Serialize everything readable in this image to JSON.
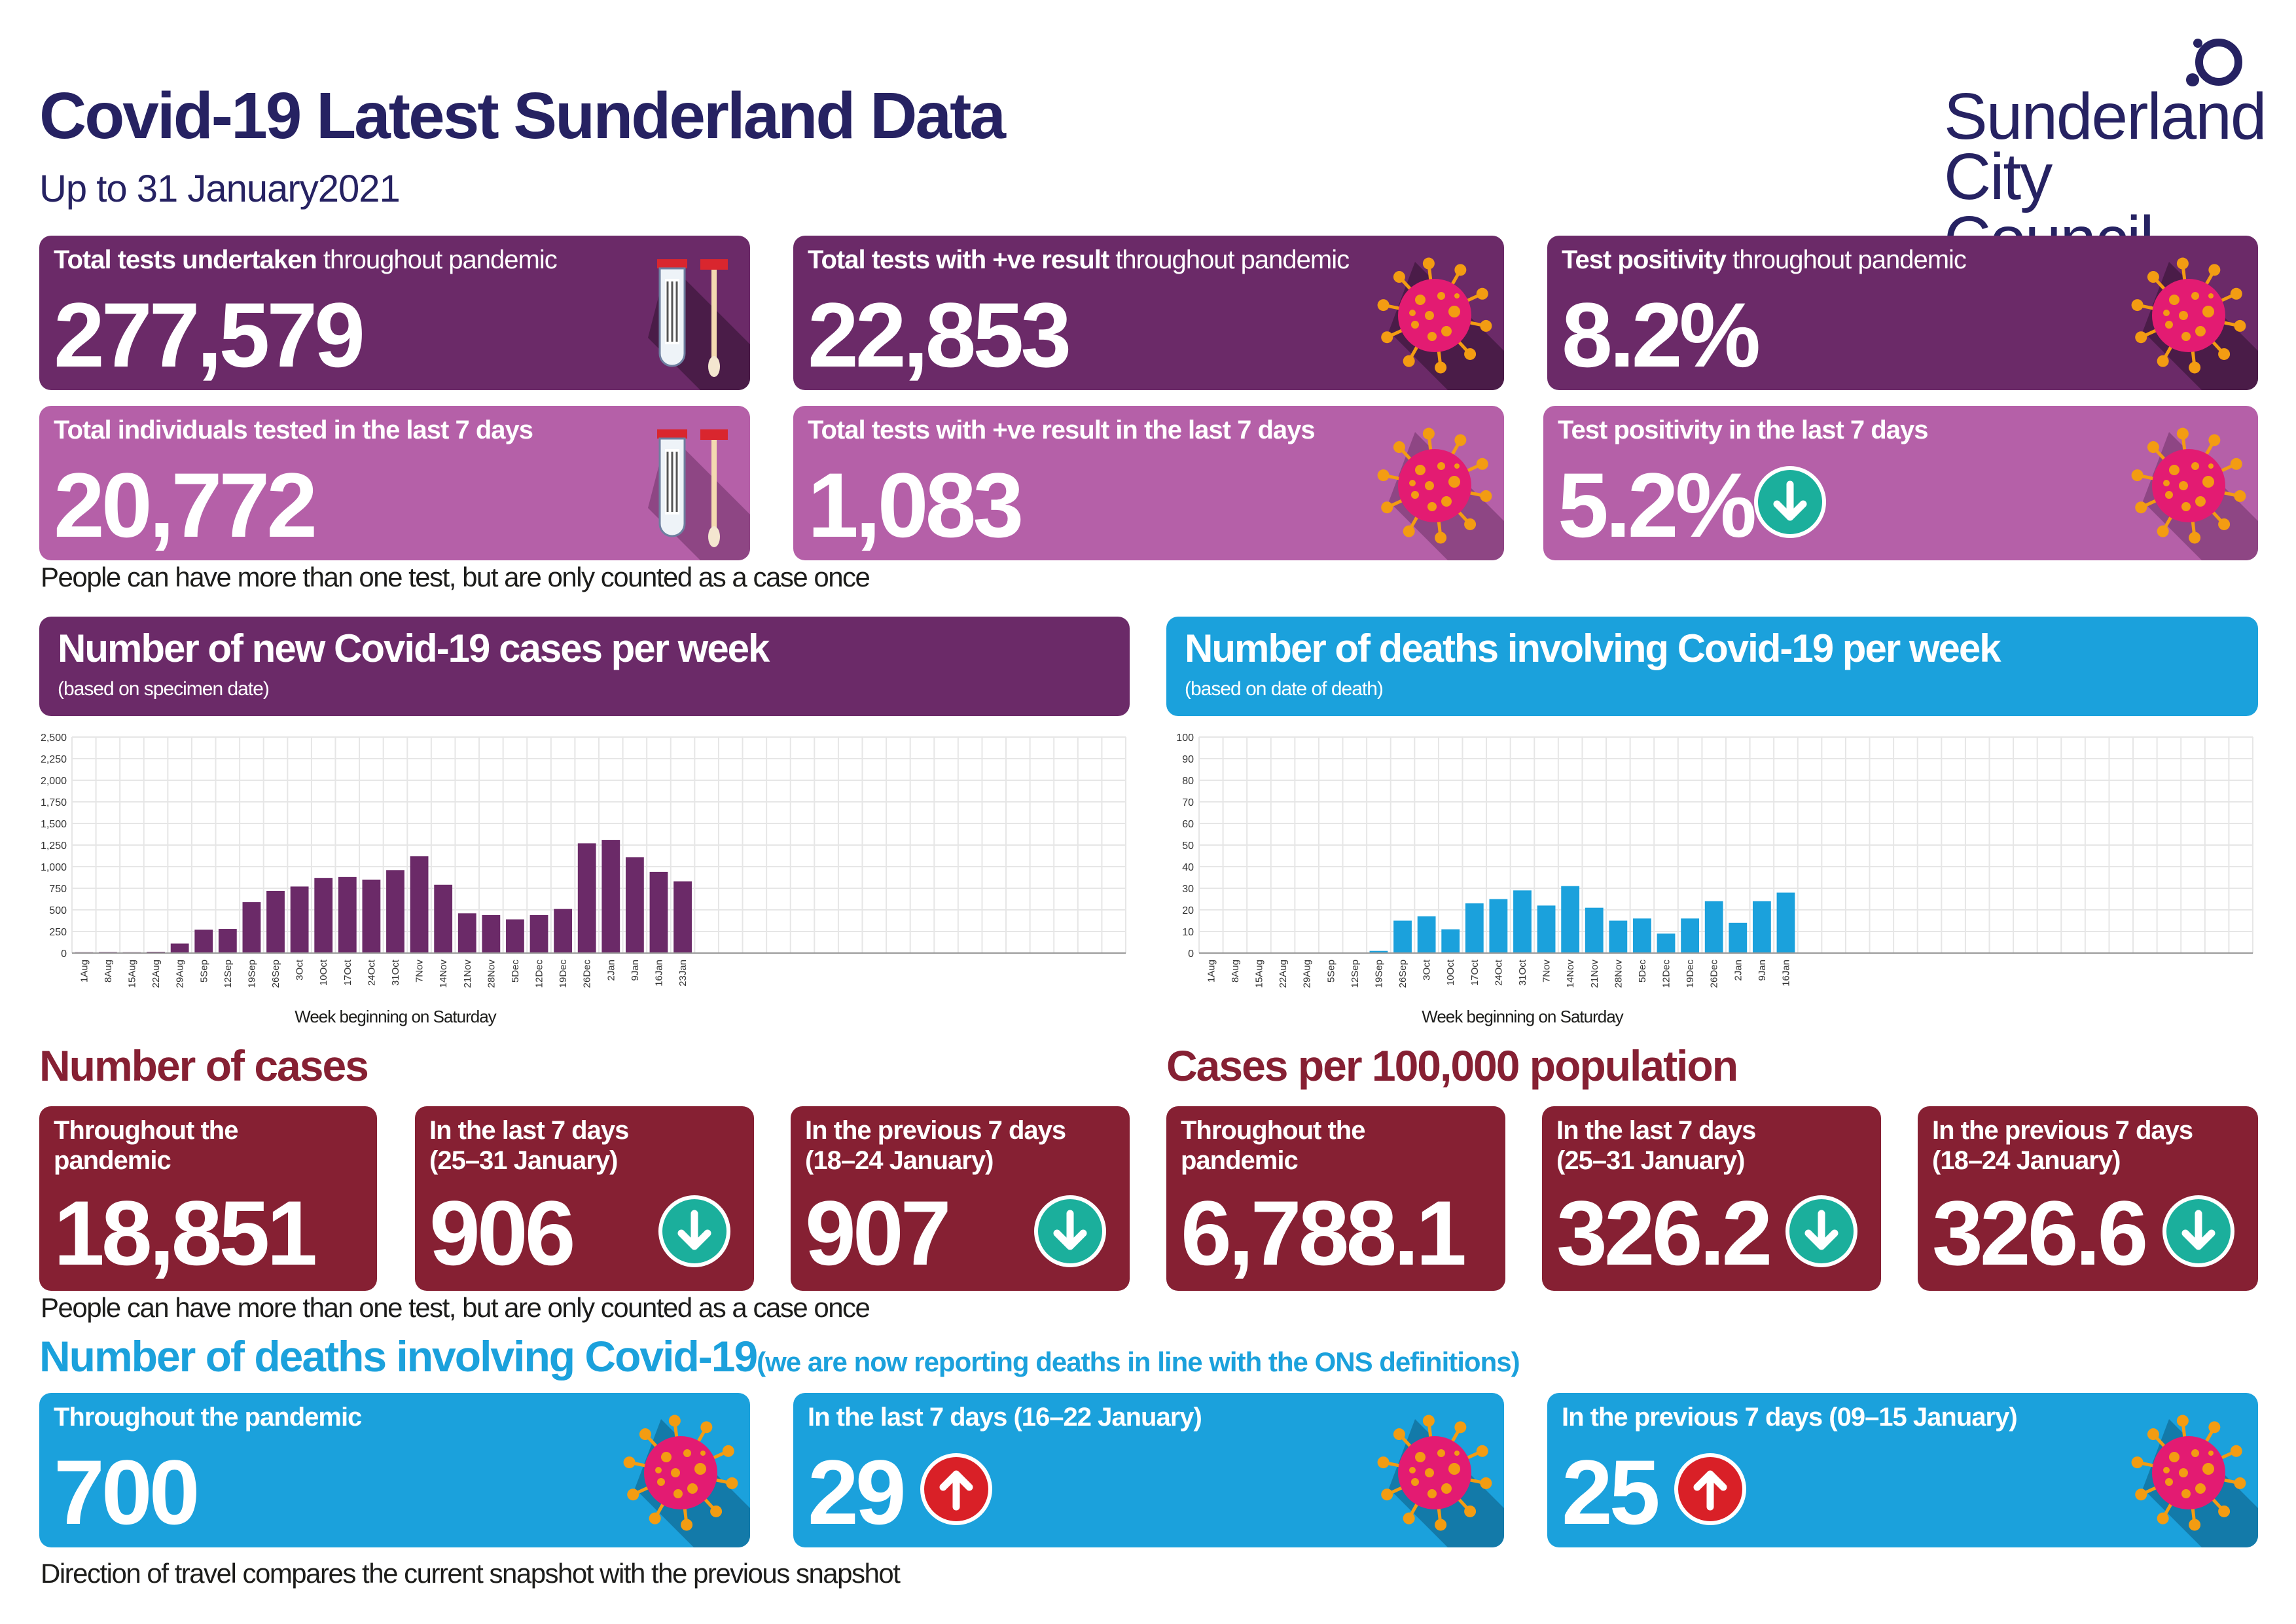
{
  "header": {
    "title": "Covid-19 Latest Sunderland Data",
    "subtitle": "Up to 31 January2021",
    "logo_line1": "Sunderland",
    "logo_line2": "City Council"
  },
  "colors": {
    "navy": "#262262",
    "purple_dark": "#6b2a68",
    "purple_light": "#b560a8",
    "maroon": "#862033",
    "blue": "#1ba1dc",
    "teal_arrow": "#1baf9c",
    "red_arrow": "#d92027",
    "virus_pink": "#e31b72",
    "virus_orange": "#f39c12"
  },
  "tests": {
    "total_tests": {
      "label_bold": "Total tests undertaken",
      "label_rest": " throughout pandemic",
      "value": "277,579",
      "icon": "test-tubes-icon"
    },
    "total_positive": {
      "label_bold": "Total tests with +ve result",
      "label_rest": " throughout pandemic",
      "value": "22,853",
      "icon": "virus-icon"
    },
    "positivity": {
      "label_bold": "Test positivity",
      "label_rest": " throughout pandemic",
      "value": "8.2%",
      "icon": "virus-icon"
    },
    "individuals_7d": {
      "label": "Total individuals tested in the last 7 days",
      "value": "20,772",
      "icon": "test-tubes-icon"
    },
    "positive_7d": {
      "label": "Total tests with +ve result in the  last 7 days",
      "value": "1,083",
      "icon": "virus-icon"
    },
    "positivity_7d": {
      "label": "Test positivity in the last 7 days",
      "value": "5.2%",
      "direction": "down"
    }
  },
  "note_tests": "People can have more than  one test,  but  are only counted  as a case once",
  "charts": {
    "cases": {
      "title": "Number of new Covid-19 cases per week",
      "subtitle": "(based on specimen date)"
    },
    "deaths": {
      "title": "Number of deaths involving Covid-19 per week",
      "subtitle": "(based on date of death)"
    }
  },
  "chart_data": [
    {
      "type": "bar",
      "title": "Number of new Covid-19 cases per week",
      "xlabel": "Week beginning on Saturday",
      "ylabel": "",
      "ylim": [
        0,
        2500
      ],
      "yticks": [
        "0",
        "250",
        "500",
        "750",
        "1,000",
        "1,250",
        "1,500",
        "1,750",
        "2,000",
        "2,250",
        "2,500"
      ],
      "slots": 44,
      "categories": [
        "1Aug",
        "8Aug",
        "15Aug",
        "22Aug",
        "29Aug",
        "5Sep",
        "12Sep",
        "19Sep",
        "26Sep",
        "3Oct",
        "10Oct",
        "17Oct",
        "24Oct",
        "31Oct",
        "7Nov",
        "14Nov",
        "21Nov",
        "28Nov",
        "5Dec",
        "12Dec",
        "19Dec",
        "26Dec",
        "2Jan",
        "9Jan",
        "16Jan",
        "23Jan"
      ],
      "values": [
        10,
        12,
        10,
        15,
        110,
        270,
        280,
        590,
        720,
        770,
        870,
        880,
        850,
        960,
        1120,
        790,
        460,
        440,
        390,
        440,
        510,
        1270,
        1310,
        1110,
        940,
        830
      ],
      "grid": true,
      "bar_color": "#6b2a68"
    },
    {
      "type": "bar",
      "title": "Number of deaths involving Covid-19 per week",
      "xlabel": "Week beginning on Saturday",
      "ylabel": "",
      "ylim": [
        0,
        100
      ],
      "yticks": [
        "0",
        "10",
        "20",
        "30",
        "40",
        "50",
        "60",
        "70",
        "80",
        "90",
        "100"
      ],
      "slots": 44,
      "categories": [
        "1Aug",
        "8Aug",
        "15Aug",
        "22Aug",
        "29Aug",
        "5Sep",
        "12Sep",
        "19Sep",
        "26Sep",
        "3Oct",
        "10Oct",
        "17Oct",
        "24Oct",
        "31Oct",
        "7Nov",
        "14Nov",
        "21Nov",
        "28Nov",
        "5Dec",
        "12Dec",
        "19Dec",
        "26Dec",
        "2Jan",
        "9Jan",
        "16Jan"
      ],
      "values": [
        0,
        0,
        0,
        0,
        0,
        0,
        0,
        1,
        15,
        17,
        11,
        23,
        25,
        29,
        22,
        31,
        21,
        15,
        16,
        9,
        16,
        24,
        14,
        24,
        28
      ],
      "grid": true,
      "bar_color": "#1ba1dc"
    }
  ],
  "cases": {
    "heading": "Number of cases",
    "throughout": {
      "label": "Throughout the pandemic",
      "value": "18,851"
    },
    "last7": {
      "label1": "In the last 7 days",
      "label2": "(25–31  January)",
      "value": "906",
      "direction": "down"
    },
    "prev7": {
      "label1": "In the previous 7 days",
      "label2": "(18–24  January)",
      "value": "907",
      "direction": "down"
    }
  },
  "rates": {
    "heading": "Cases per 100,000  population",
    "throughout": {
      "label": "Throughout the pandemic",
      "value": "6,788.1"
    },
    "last7": {
      "label1": "In the last 7 days",
      "label2": "(25–31  January)",
      "value": "326.2",
      "direction": "down"
    },
    "prev7": {
      "label1": "In the previous 7 days",
      "label2": "(18–24  January)",
      "value": "326.6",
      "direction": "down"
    }
  },
  "note_cases": "People can have more than  one test,  but  are only counted  as a case once",
  "deaths": {
    "heading": "Number of deaths involving Covid-19",
    "heading_note": "(we are now reporting deaths in line with the  ONS definitions)",
    "throughout": {
      "label": "Throughout the pandemic",
      "value": "700"
    },
    "last7": {
      "label": "In the last 7 days (16–22 January)",
      "value": "29",
      "direction": "up"
    },
    "prev7": {
      "label": "In the previous 7 days (09–15 January)",
      "value": "25",
      "direction": "up"
    }
  },
  "footer_note": "Direction of travel compares the current snapshot with the previous snapshot"
}
